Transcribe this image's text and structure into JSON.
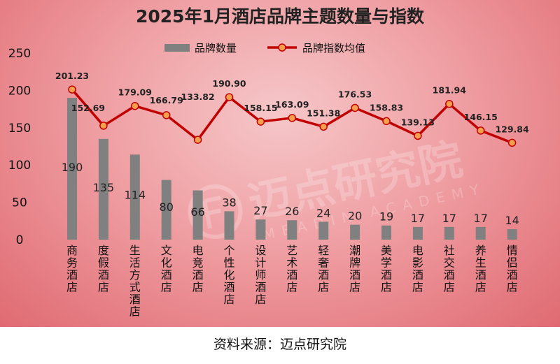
{
  "chart_data": {
    "type": "bar+line",
    "title": "2025年1月酒店品牌主题数量与指数",
    "categories": [
      "商务酒店",
      "度假酒店",
      "生活方式酒店",
      "文化酒店",
      "电竞酒店",
      "个性化酒店",
      "设计师酒店",
      "艺术酒店",
      "轻奢酒店",
      "潮牌酒店",
      "美学酒店",
      "电影酒店",
      "社交酒店",
      "养生酒店",
      "情侣酒店"
    ],
    "series": [
      {
        "name": "品牌数量",
        "type": "bar",
        "values": [
          190,
          135,
          114,
          80,
          66,
          38,
          27,
          26,
          24,
          20,
          19,
          17,
          17,
          17,
          14
        ]
      },
      {
        "name": "品牌指数均值",
        "type": "line",
        "values": [
          201.23,
          152.69,
          179.09,
          166.79,
          133.82,
          190.9,
          158.15,
          163.09,
          151.38,
          176.53,
          158.83,
          139.13,
          181.94,
          146.15,
          129.84
        ]
      }
    ],
    "bar_labels": [
      "190",
      "135",
      "114",
      "80",
      "66",
      "38",
      "27",
      "26",
      "24",
      "20",
      "19",
      "17",
      "17",
      "17",
      "14"
    ],
    "line_labels": [
      "201.23",
      "152.69",
      "179.09",
      "166.79",
      "133.82",
      "190.90",
      "158.15",
      "163.09",
      "151.38",
      "176.53",
      "158.83",
      "139.13",
      "181.94",
      "146.15",
      "129.84"
    ],
    "y_ticks": [
      "0",
      "50",
      "100",
      "150",
      "200",
      "250"
    ],
    "ylim": [
      0,
      250
    ],
    "legend": {
      "position": "top"
    },
    "colors": {
      "bar": "#808080",
      "line": "#c00000",
      "marker_fill": "#f6a04d"
    }
  },
  "watermark": {
    "text": "迈点研究院",
    "subtext": "MEADIN ACADEMY"
  },
  "source_note": "资料来源：迈点研究院"
}
